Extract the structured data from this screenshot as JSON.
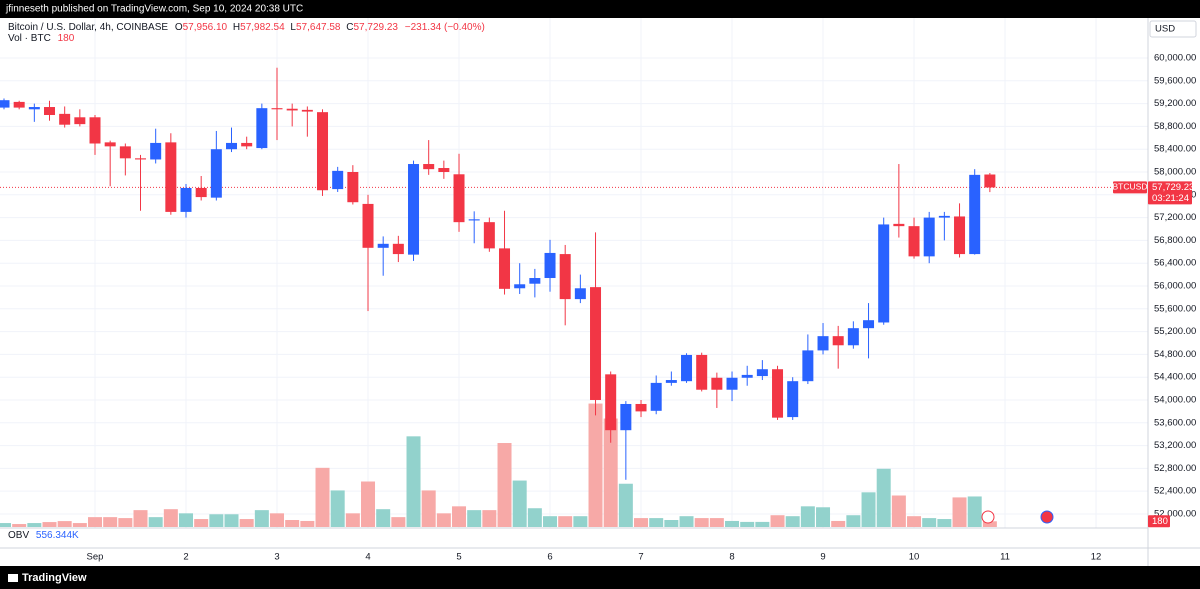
{
  "chart_data": {
    "type": "candlestick",
    "publisher_line": "jfinneseth published on TradingView.com, Sep 10, 2024 20:38 UTC",
    "symbol": "Bitcoin / U.S. Dollar, 4h, COINBASE",
    "legend_ohlc": [
      {
        "label": "O",
        "value": "57,956.10"
      },
      {
        "label": "H",
        "value": "57,982.54"
      },
      {
        "label": "L",
        "value": "57,647.58"
      },
      {
        "label": "C",
        "value": "57,729.23"
      }
    ],
    "change": "−231.34 (−0.40%)",
    "volume_label": "Vol · BTC",
    "currency": "USD",
    "ticker": "BTCUSD",
    "last_price_label": "57,729.23",
    "countdown": "03:21:24",
    "obv_label": "OBV",
    "obv_value": "556.344K",
    "brand": "TradingView",
    "up_color": "#2962ff",
    "down_color": "#f23645",
    "volume_up_color": "#92d2cc",
    "volume_down_color": "#f7a9a7",
    "grid": true,
    "xlim": [
      -0.044,
      12.571
    ],
    "xticks": [
      {
        "value": 1,
        "label": "Sep"
      },
      2,
      3,
      4,
      5,
      6,
      7,
      8,
      9,
      10,
      11,
      12
    ],
    "ylim": [
      51754,
      60702
    ],
    "yticks": [
      {
        "value": 60000,
        "label": "60,000.00"
      },
      {
        "value": 59600,
        "label": "59,600.00"
      },
      {
        "value": 59200,
        "label": "59,200.00"
      },
      {
        "value": 58800,
        "label": "58,800.00"
      },
      {
        "value": 58400,
        "label": "58,400.00"
      },
      {
        "value": 58000,
        "label": "58,000.00"
      },
      {
        "value": 57600,
        "label": "57,600.00"
      },
      {
        "value": 57200,
        "label": "57,200.00"
      },
      {
        "value": 56800,
        "label": "56,800.00"
      },
      {
        "value": 56400,
        "label": "56,400.00"
      },
      {
        "value": 56000,
        "label": "56,000.00"
      },
      {
        "value": 55600,
        "label": "55,600.00"
      },
      {
        "value": 55200,
        "label": "55,200.00"
      },
      {
        "value": 54800,
        "label": "54,800.00"
      },
      {
        "value": 54400,
        "label": "54,400.00"
      },
      {
        "value": 54000,
        "label": "54,000.00"
      },
      {
        "value": 53600,
        "label": "53,600.00"
      },
      {
        "value": 53200,
        "label": "53,200.00"
      },
      {
        "value": 52800,
        "label": "52,800.00"
      },
      {
        "value": 52400,
        "label": "52,400.00"
      },
      {
        "value": 52000,
        "label": "52,000.00"
      }
    ],
    "volume_ylim": [
      0,
      16000
    ],
    "x": [
      0,
      0.1667,
      0.3333,
      0.5,
      0.6667,
      0.8333,
      1,
      1.1667,
      1.3333,
      1.5,
      1.6667,
      1.8333,
      2,
      2.1667,
      2.3333,
      2.5,
      2.6667,
      2.8333,
      3,
      3.1667,
      3.3333,
      3.5,
      3.6667,
      3.8333,
      4,
      4.1667,
      4.3333,
      4.5,
      4.6667,
      4.8333,
      5,
      5.1667,
      5.3333,
      5.5,
      5.6667,
      5.8333,
      6,
      6.1667,
      6.3333,
      6.5,
      6.6667,
      6.8333,
      7,
      7.1667,
      7.3333,
      7.5,
      7.6667,
      7.8333,
      8,
      8.1667,
      8.3333,
      8.5,
      8.6667,
      8.8333,
      9,
      9.1667,
      9.3333,
      9.5,
      9.6667,
      9.8333,
      10,
      10.1667,
      10.3333,
      10.5,
      10.6667,
      10.8333
    ],
    "open": [
      59130,
      59230,
      59100,
      59140,
      59020,
      58960,
      58960,
      58520,
      58450,
      58240,
      58220,
      58520,
      57300,
      57720,
      57550,
      58400,
      58510,
      58420,
      59120,
      59110,
      59090,
      59050,
      57700,
      58000,
      57440,
      56670,
      56740,
      56550,
      58140,
      58070,
      57960,
      57150,
      57120,
      56660,
      55960,
      56040,
      56140,
      56560,
      55770,
      55980,
      54450,
      53470,
      53930,
      53810,
      54300,
      54330,
      54790,
      54390,
      54180,
      54390,
      54420,
      54540,
      53700,
      54330,
      54870,
      55120,
      54960,
      55260,
      55360,
      57090,
      57050,
      56520,
      57200,
      57220,
      56560,
      57956.1
    ],
    "high": [
      59290,
      59250,
      59200,
      59250,
      59150,
      59100,
      59000,
      58550,
      58500,
      58300,
      58760,
      58680,
      57790,
      57930,
      58720,
      58780,
      58620,
      59200,
      59830,
      59200,
      59150,
      59100,
      58090,
      58120,
      57600,
      56870,
      56880,
      58200,
      58560,
      58200,
      58320,
      57310,
      57200,
      57320,
      56400,
      56300,
      56810,
      56720,
      56200,
      56940,
      54500,
      53980,
      54000,
      54430,
      54500,
      54820,
      54830,
      54480,
      54500,
      54600,
      54700,
      54600,
      54400,
      55150,
      55350,
      55300,
      55380,
      55700,
      57200,
      58140,
      57200,
      57300,
      57300,
      57450,
      58050,
      57982.54
    ],
    "low": [
      59100,
      59100,
      58880,
      58900,
      58780,
      58800,
      58300,
      57750,
      57940,
      57320,
      58150,
      57250,
      57200,
      57500,
      57500,
      58350,
      58400,
      58400,
      58560,
      58800,
      58620,
      57580,
      57650,
      57430,
      55560,
      56180,
      56420,
      56440,
      57950,
      57880,
      56950,
      56750,
      56600,
      55850,
      55860,
      55800,
      55900,
      55310,
      55700,
      53730,
      53250,
      52600,
      53700,
      53750,
      54250,
      54300,
      54150,
      53860,
      53980,
      54250,
      54350,
      53650,
      53650,
      54280,
      54800,
      54550,
      54900,
      54730,
      55320,
      56850,
      56480,
      56400,
      56800,
      56500,
      56550,
      57647.58
    ],
    "close": [
      59260,
      59130,
      59140,
      59000,
      58830,
      58840,
      58500,
      58450,
      58240,
      58220,
      58510,
      57300,
      57720,
      57560,
      58400,
      58510,
      58450,
      59120,
      59100,
      59080,
      59060,
      57680,
      58020,
      57470,
      56670,
      56740,
      56560,
      58140,
      58050,
      58000,
      57120,
      57170,
      56660,
      55950,
      56030,
      56140,
      56580,
      55770,
      55960,
      54000,
      53470,
      53930,
      53800,
      54300,
      54350,
      54790,
      54180,
      54180,
      54390,
      54440,
      54540,
      53690,
      54330,
      54870,
      55120,
      54960,
      55260,
      55400,
      57080,
      57050,
      56520,
      57200,
      57230,
      56560,
      57950,
      57729.23
    ],
    "volume": [
      124,
      93,
      124,
      155,
      186,
      124,
      310,
      310,
      280,
      530,
      310,
      560,
      430,
      250,
      400,
      400,
      250,
      530,
      430,
      220,
      190,
      1860,
      1150,
      430,
      1430,
      560,
      310,
      2850,
      1150,
      430,
      650,
      530,
      530,
      2640,
      1460,
      590,
      340,
      340,
      340,
      3880,
      3410,
      1360,
      280,
      280,
      220,
      340,
      280,
      280,
      190,
      160,
      160,
      370,
      340,
      650,
      620,
      190,
      370,
      1090,
      1830,
      990,
      340,
      280,
      250,
      930,
      960,
      180
    ]
  }
}
